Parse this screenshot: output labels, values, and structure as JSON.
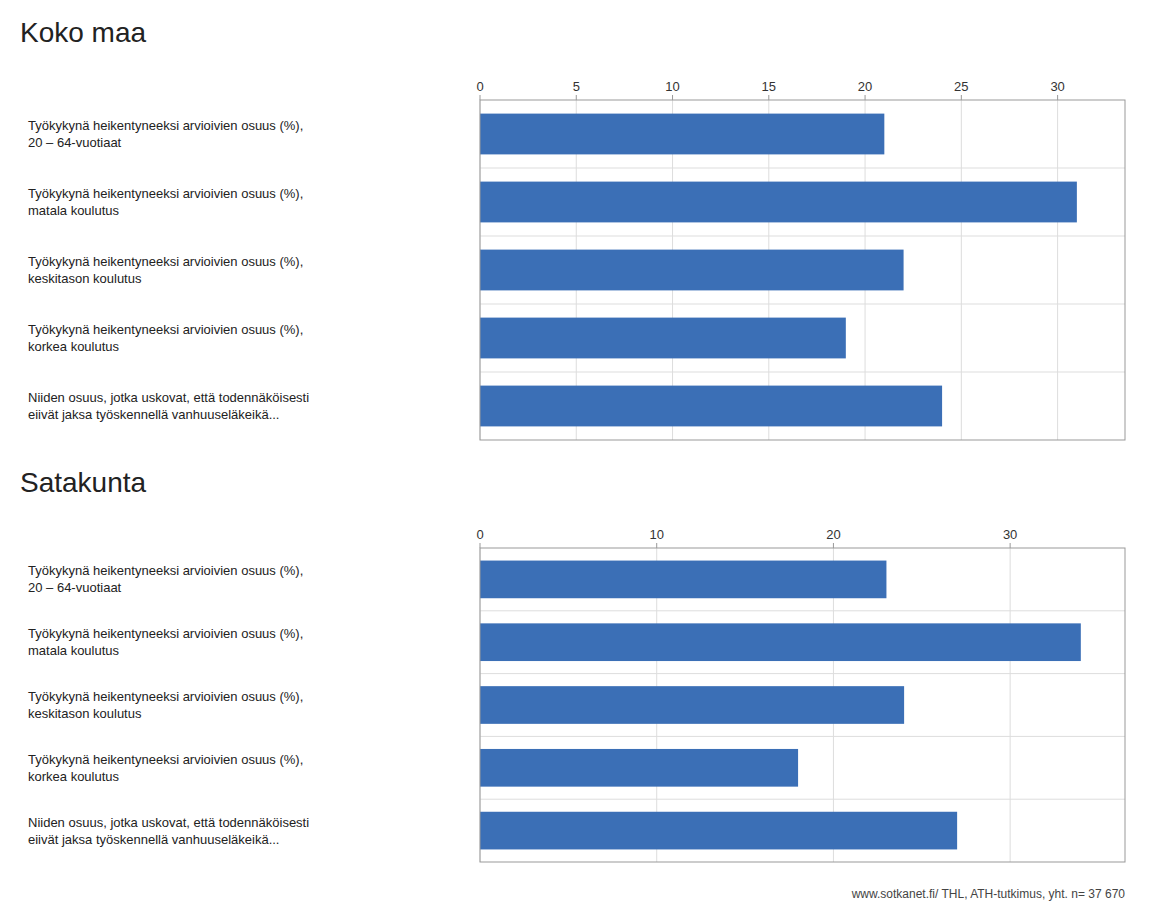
{
  "chart_data": [
    {
      "type": "bar",
      "orientation": "horizontal",
      "title": "Koko maa",
      "categories": [
        "Työkykynä heikentyneeksi arvioivien osuus (%),\n20 – 64-vuotiaat",
        "Työkykynä heikentyneeksi arvioivien osuus (%),\nmatala koulutus",
        "Työkykynä heikentyneeksi arvioivien osuus (%),\nkeskitason koulutus",
        "Työkykynä heikentyneeksi arvioivien osuus (%),\nkorkea koulutus",
        "Niiden osuus, jotka uskovat, että todennäköisesti\neiivät jaksa työskennellä vanhuuseläkeikä..."
      ],
      "values": [
        21.0,
        31.0,
        22.0,
        19.0,
        24.0
      ],
      "color": "#3b6fb6",
      "xlim": [
        0,
        33.5
      ],
      "xticks": [
        0,
        5,
        10,
        15,
        20,
        25,
        30
      ],
      "grid": true
    },
    {
      "type": "bar",
      "orientation": "horizontal",
      "title": "Satakunta",
      "categories": [
        "Työkykynä heikentyneeksi arvioivien osuus (%),\n20 – 64-vuotiaat",
        "Työkykynä heikentyneeksi arvioivien osuus (%),\nmatala koulutus",
        "Työkykynä heikentyneeksi arvioivien osuus (%),\nkeskitason koulutus",
        "Työkykynä heikentyneeksi arvioivien osuus (%),\nkorkea koulutus",
        "Niiden osuus, jotka uskovat, että todennäköisesti\neiivät jaksa työskennellä vanhuuseläkeikä..."
      ],
      "values": [
        23.0,
        34.0,
        24.0,
        18.0,
        27.0
      ],
      "color": "#3b6fb6",
      "xlim": [
        0,
        36.5
      ],
      "xticks": [
        0,
        10,
        20,
        30
      ],
      "grid": true,
      "annotations": [
        "www.sotkanet.fi/ THL, ATH-tutkimus, yht. n= 37 670"
      ]
    }
  ]
}
